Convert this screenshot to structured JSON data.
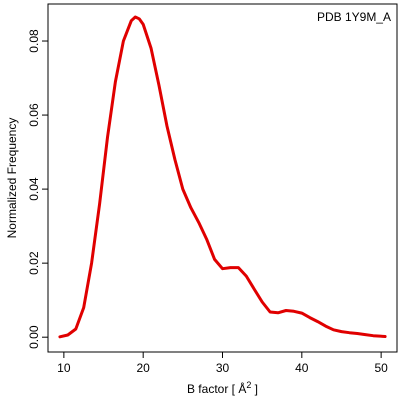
{
  "chart_data": {
    "type": "line",
    "title": "",
    "annotation": "PDB 1Y9M_A",
    "xlabel_main": "B factor [ Å",
    "xlabel_sup": "2",
    "xlabel_close": " ]",
    "ylabel": "Normalized Frequency",
    "xlim": [
      8,
      52
    ],
    "ylim": [
      -0.004,
      0.09
    ],
    "x_ticks": [
      10,
      20,
      30,
      40,
      50
    ],
    "x_tick_labels": [
      "10",
      "20",
      "30",
      "40",
      "50"
    ],
    "y_ticks": [
      0.0,
      0.02,
      0.04,
      0.06,
      0.08
    ],
    "y_tick_labels": [
      "0.00",
      "0.02",
      "0.04",
      "0.06",
      "0.08"
    ],
    "grid": false,
    "legend": "none",
    "series": [
      {
        "color": "#e00000",
        "x": [
          9.5,
          10.5,
          11.5,
          12.5,
          13.5,
          14.5,
          15.5,
          16.5,
          17.5,
          18.5,
          19.0,
          19.5,
          20.0,
          21.0,
          22.0,
          23.0,
          24.0,
          25.0,
          26.0,
          27.0,
          28.0,
          29.0,
          30.0,
          31.0,
          32.0,
          33.0,
          34.0,
          35.0,
          36.0,
          37.0,
          38.0,
          39.0,
          40.0,
          41.0,
          42.0,
          43.0,
          44.0,
          45.0,
          46.0,
          47.0,
          48.0,
          49.0,
          50.5
        ],
        "y": [
          0.0001,
          0.0006,
          0.0022,
          0.008,
          0.02,
          0.036,
          0.054,
          0.069,
          0.08,
          0.0855,
          0.0865,
          0.086,
          0.0845,
          0.078,
          0.068,
          0.057,
          0.048,
          0.04,
          0.035,
          0.031,
          0.0265,
          0.021,
          0.0185,
          0.0188,
          0.0188,
          0.0165,
          0.013,
          0.0095,
          0.0068,
          0.0066,
          0.0072,
          0.007,
          0.0065,
          0.0053,
          0.0042,
          0.003,
          0.002,
          0.0015,
          0.0012,
          0.001,
          0.0007,
          0.0004,
          0.0002
        ]
      }
    ]
  }
}
